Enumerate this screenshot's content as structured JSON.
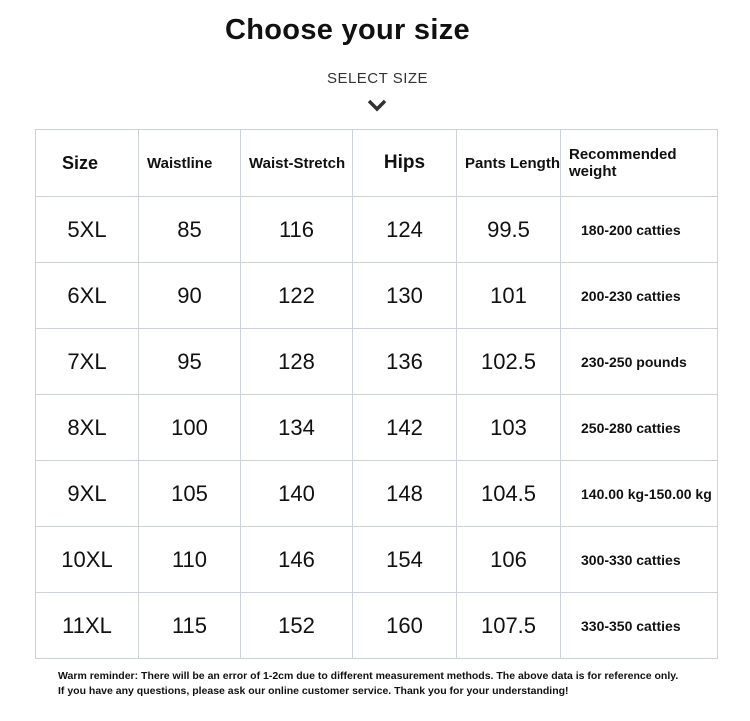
{
  "title": "Choose your size",
  "subtitle": "SELECT SIZE",
  "table": {
    "headers": [
      "Size",
      "Waistline",
      "Waist-Stretch",
      "Hips",
      "Pants Length",
      "Recommended weight"
    ],
    "rows": [
      [
        "5XL",
        "85",
        "116",
        "124",
        "99.5",
        "180-200 catties"
      ],
      [
        "6XL",
        "90",
        "122",
        "130",
        "101",
        "200-230 catties"
      ],
      [
        "7XL",
        "95",
        "128",
        "136",
        "102.5",
        "230-250 pounds"
      ],
      [
        "8XL",
        "100",
        "134",
        "142",
        "103",
        "250-280 catties"
      ],
      [
        "9XL",
        "105",
        "140",
        "148",
        "104.5",
        "140.00 kg-150.00 kg"
      ],
      [
        "10XL",
        "110",
        "146",
        "154",
        "106",
        "300-330 catties"
      ],
      [
        "11XL",
        "115",
        "152",
        "160",
        "107.5",
        "330-350 catties"
      ]
    ]
  },
  "note": {
    "line1": "Warm reminder: There will be an error of 1-2cm due to different measurement methods. The above data is for reference only.",
    "line2": "If you have any questions, please ask our online customer service. Thank you for your understanding!"
  }
}
